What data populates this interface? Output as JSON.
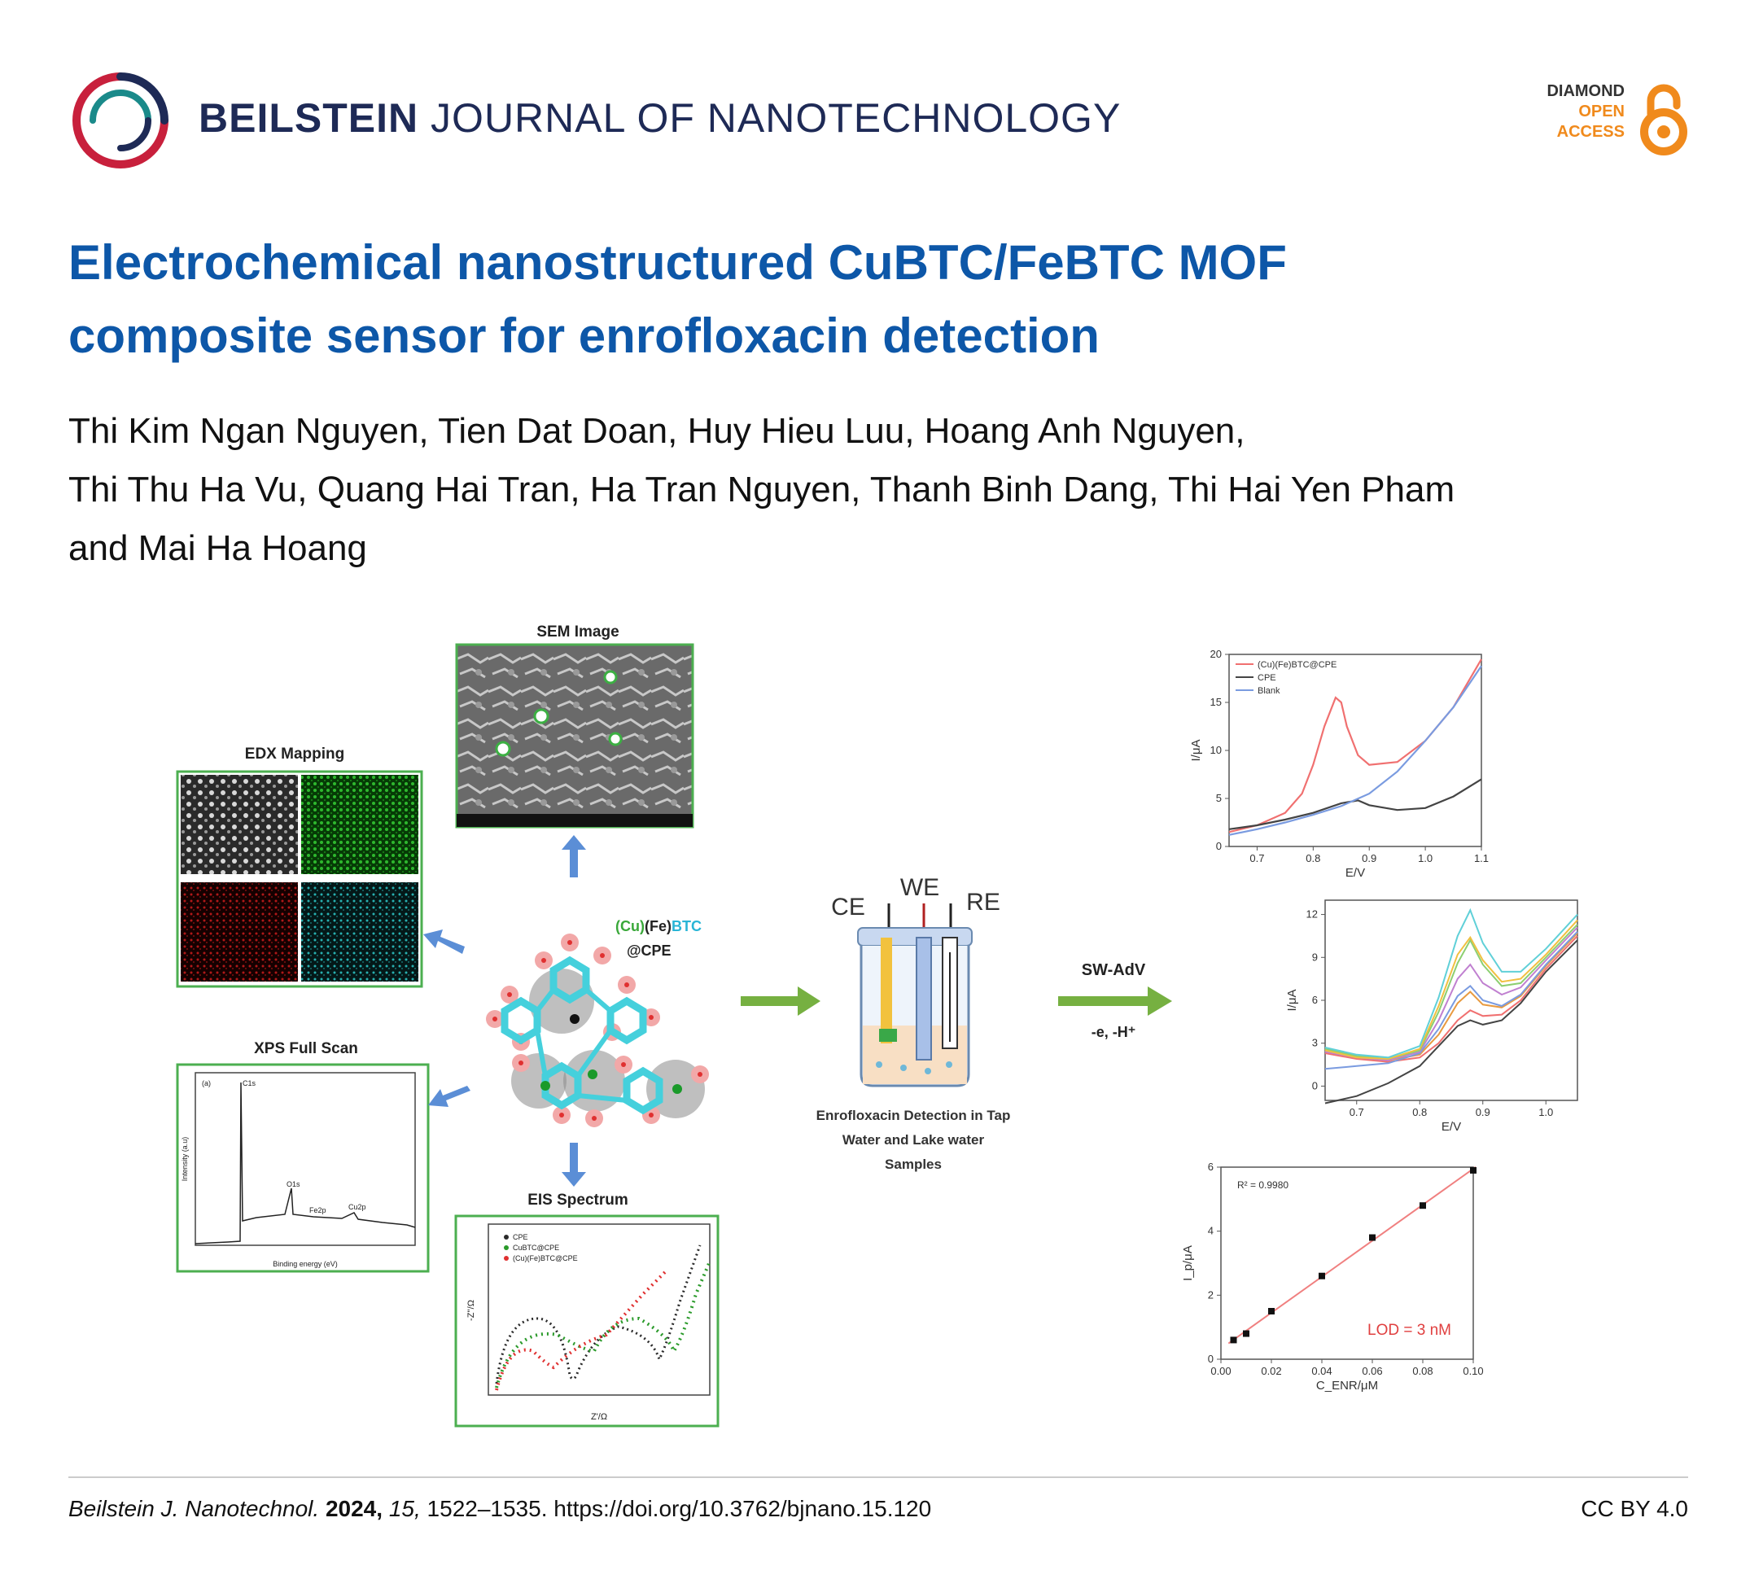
{
  "header": {
    "journal_bold": "BEILSTEIN",
    "journal_rest": "JOURNAL OF NANOTECHNOLOGY",
    "oa_line1": "DIAMOND",
    "oa_line2": "OPEN",
    "oa_line3": "ACCESS",
    "colors": {
      "navy": "#1e2a56",
      "title_blue": "#0d57a8",
      "oa_orange": "#f08a1c",
      "logo_red": "#c8203c",
      "logo_teal": "#1a8a8a"
    }
  },
  "article": {
    "title_line1": "Electrochemical nanostructured CuBTC/FeBTC MOF",
    "title_line2": "composite sensor for enrofloxacin detection",
    "authors_line1": "Thi Kim Ngan Nguyen, Tien Dat Doan, Huy Hieu Luu, Hoang Anh Nguyen,",
    "authors_line2": "Thi Thu Ha Vu, Quang Hai Tran, Ha Tran Nguyen, Thanh Binh Dang, Thi Hai Yen Pham",
    "authors_line3": "and Mai Ha Hoang"
  },
  "abstract": {
    "sem_title": "SEM Image",
    "edx_title": "EDX Mapping",
    "xps_title": "XPS Full Scan",
    "eis_title": "EIS Spectrum",
    "mof_label_cu": "(Cu)",
    "mof_label_fe": "(Fe)",
    "mof_label_btc": "BTC",
    "mof_label_cpe": "@CPE",
    "cell_ce": "CE",
    "cell_we": "WE",
    "cell_re": "RE",
    "cell_caption_1": "Enrofloxacin Detection in Tap",
    "cell_caption_2": "Water and Lake water",
    "cell_caption_3": "Samples",
    "method": "SW-AdV",
    "method_sub": "-e, -H⁺",
    "xps_peaks": [
      "C1s",
      "O1s",
      "Fe2p",
      "Cu2p"
    ],
    "xps_xlabel": "Binding energy (eV)",
    "xps_ylabel": "Intensity (a.u)",
    "xps_corner": "(a)",
    "eis_legend": [
      "CPE",
      "CuBTC@CPE",
      "(Cu)(Fe)BTC@CPE"
    ],
    "eis_xlabel": "Z'/Ω",
    "eis_ylabel": "-Z''/Ω"
  },
  "chart_data": [
    {
      "type": "line",
      "xlabel": "E/V",
      "ylabel": "I/μA",
      "xlim": [
        0.65,
        1.1
      ],
      "ylim": [
        0,
        20
      ],
      "xticks": [
        "0.7",
        "0.8",
        "0.9",
        "1.0",
        "1.1"
      ],
      "yticks": [
        "0",
        "5",
        "10",
        "15",
        "20"
      ],
      "legend_position": "top-left",
      "series": [
        {
          "name": "(Cu)(Fe)BTC@CPE",
          "color": "#f07070",
          "x": [
            0.65,
            0.7,
            0.75,
            0.78,
            0.8,
            0.82,
            0.84,
            0.85,
            0.86,
            0.88,
            0.9,
            0.95,
            1.0,
            1.05,
            1.1
          ],
          "values": [
            1.5,
            2.2,
            3.5,
            5.5,
            8.5,
            12.5,
            15.5,
            15.0,
            12.5,
            9.5,
            8.5,
            8.8,
            11,
            14.5,
            19.5
          ]
        },
        {
          "name": "CPE",
          "color": "#444444",
          "x": [
            0.65,
            0.7,
            0.75,
            0.8,
            0.85,
            0.88,
            0.9,
            0.95,
            1.0,
            1.05,
            1.1
          ],
          "values": [
            1.8,
            2.2,
            2.8,
            3.5,
            4.5,
            4.8,
            4.3,
            3.8,
            4.0,
            5.2,
            7.0
          ]
        },
        {
          "name": "Blank",
          "color": "#7a9be0",
          "x": [
            0.65,
            0.7,
            0.75,
            0.8,
            0.85,
            0.9,
            0.95,
            1.0,
            1.05,
            1.1
          ],
          "values": [
            1.2,
            1.8,
            2.5,
            3.3,
            4.2,
            5.5,
            7.8,
            11,
            14.5,
            18.8
          ]
        }
      ]
    },
    {
      "type": "line",
      "xlabel": "E/V",
      "ylabel": "I/μA",
      "xlim": [
        0.65,
        1.05
      ],
      "ylim": [
        -1,
        13
      ],
      "xticks": [
        "0.7",
        "0.8",
        "0.9",
        "1.0"
      ],
      "yticks": [
        "0",
        "3",
        "6",
        "9",
        "12"
      ],
      "x": [
        0.65,
        0.7,
        0.75,
        0.8,
        0.83,
        0.86,
        0.88,
        0.9,
        0.93,
        0.96,
        1.0,
        1.05
      ],
      "series": [
        {
          "color": "#444444",
          "values": [
            -1.2,
            -0.7,
            0.2,
            1.4,
            2.8,
            4.2,
            4.6,
            4.3,
            4.6,
            5.8,
            8.0,
            10.2
          ]
        },
        {
          "color": "#f07070",
          "values": [
            2.3,
            1.9,
            1.7,
            2.0,
            3.0,
            4.6,
            5.3,
            4.9,
            5.0,
            6.0,
            8.2,
            10.5
          ]
        },
        {
          "color": "#e89a40",
          "values": [
            2.6,
            2.0,
            1.8,
            2.2,
            3.6,
            5.8,
            6.6,
            5.7,
            5.5,
            6.3,
            8.4,
            10.7
          ]
        },
        {
          "color": "#7a9be0",
          "values": [
            1.2,
            1.4,
            1.6,
            2.3,
            4.0,
            6.3,
            7.0,
            6.0,
            5.6,
            6.4,
            8.5,
            10.8
          ]
        },
        {
          "color": "#c080d0",
          "values": [
            2.4,
            2.0,
            1.8,
            2.4,
            4.6,
            7.5,
            8.5,
            7.2,
            6.4,
            6.9,
            8.8,
            11.1
          ]
        },
        {
          "color": "#8ccf70",
          "values": [
            2.6,
            2.1,
            1.9,
            2.5,
            5.2,
            8.6,
            10.2,
            8.5,
            7.0,
            7.2,
            9.0,
            11.3
          ]
        },
        {
          "color": "#f0c040",
          "values": [
            2.5,
            2.0,
            1.9,
            2.6,
            5.6,
            9.2,
            10.4,
            8.8,
            7.3,
            7.5,
            9.2,
            11.6
          ]
        },
        {
          "color": "#60d0d8",
          "values": [
            2.7,
            2.2,
            2.0,
            2.8,
            6.2,
            10.5,
            12.3,
            10.0,
            8.0,
            8.0,
            9.6,
            12.0
          ]
        }
      ]
    },
    {
      "type": "scatter",
      "xlabel": "C_ENR/μM",
      "ylabel": "I_p/μA",
      "xlim": [
        0,
        0.1
      ],
      "ylim": [
        0,
        6
      ],
      "xticks": [
        "0.00",
        "0.02",
        "0.04",
        "0.06",
        "0.08",
        "0.10"
      ],
      "yticks": [
        "0",
        "2",
        "4",
        "6"
      ],
      "x": [
        0.005,
        0.01,
        0.02,
        0.04,
        0.06,
        0.08,
        0.1
      ],
      "values": [
        0.6,
        0.8,
        1.5,
        2.6,
        3.8,
        4.8,
        5.9
      ],
      "fit_line": true,
      "annotation_r2": "R² = 0.9980",
      "annotation_lod": "LOD = 3 nM"
    }
  ],
  "footer": {
    "journal_abbrev": "Beilstein J. Nanotechnol.",
    "year": "2024,",
    "volume": "15,",
    "pages_doi": "1522–1535. https://doi.org/10.3762/bjnano.15.120",
    "license": "CC BY 4.0"
  }
}
